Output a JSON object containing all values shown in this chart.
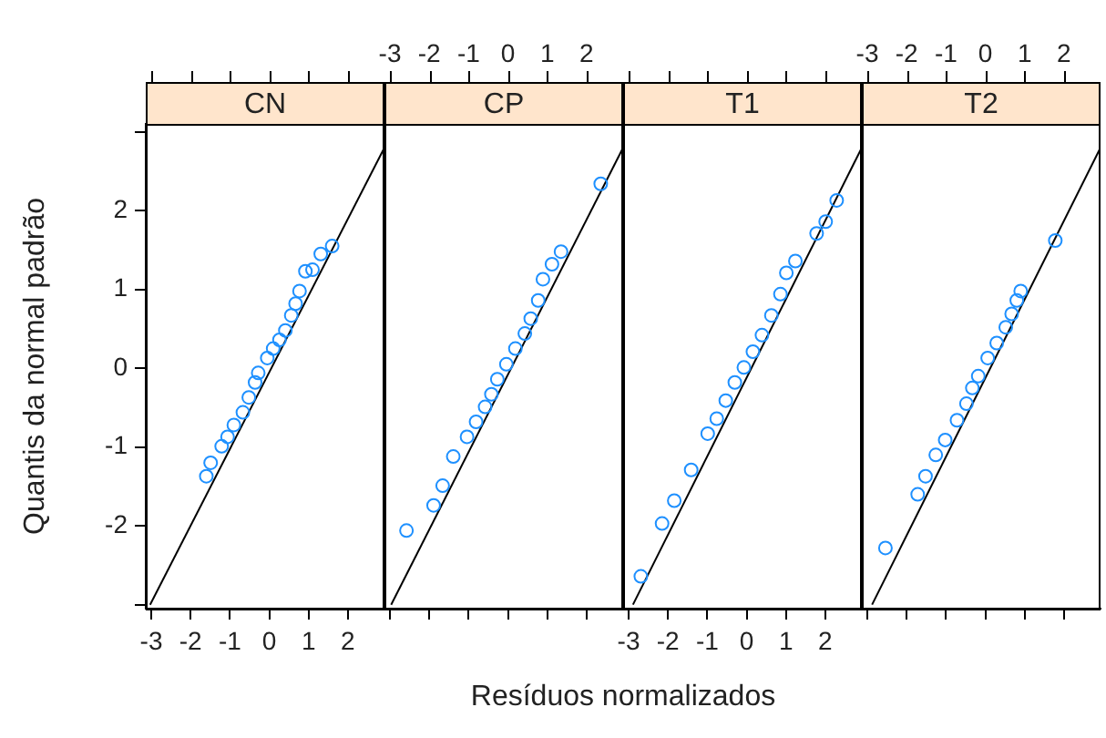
{
  "chart_data": [
    {
      "type": "scatter",
      "title": "CN",
      "xlabel": "Resíduos normalizados",
      "ylabel": "Quantis da normal padrão",
      "xlim": [
        -3.14,
        2.93
      ],
      "ylim": [
        -3.05,
        3.1
      ],
      "xticks": [
        -3,
        -2,
        -1,
        0,
        1,
        2
      ],
      "yticks": [
        {
          "value": -3,
          "label": null
        },
        -2,
        -1,
        0,
        1,
        2,
        {
          "value": 3,
          "label": null
        }
      ],
      "series": [
        {
          "marker": "circle",
          "color": "#1e90ff",
          "x": [
            -1.6,
            -1.49,
            -1.21,
            -1.06,
            -0.9,
            -0.67,
            -0.52,
            -0.36,
            -0.28,
            -0.05,
            0.1,
            0.26,
            0.41,
            0.56,
            0.67,
            0.77,
            0.92,
            1.1,
            1.31,
            1.6
          ],
          "values": [
            -1.37,
            -1.2,
            -0.99,
            -0.87,
            -0.72,
            -0.56,
            -0.37,
            -0.18,
            -0.06,
            0.13,
            0.25,
            0.36,
            0.48,
            0.67,
            0.82,
            0.98,
            1.23,
            1.25,
            1.45,
            1.55
          ]
        },
        {
          "type": "line",
          "color": "#000000",
          "x": [
            -3.03,
            2.93
          ],
          "values": [
            -3.0,
            2.8
          ]
        }
      ]
    },
    {
      "type": "scatter",
      "title": "CP",
      "xlim": [
        -3.14,
        2.93
      ],
      "ylim": [
        -3.05,
        3.1
      ],
      "xticks": [
        {
          "value": -3,
          "label": null
        },
        {
          "value": -2,
          "label": null
        },
        {
          "value": -1,
          "label": null
        },
        {
          "value": 0,
          "label": null
        },
        {
          "value": 1,
          "label": null
        },
        {
          "value": 2,
          "label": null
        }
      ],
      "x2lim": [
        -3.14,
        2.93
      ],
      "x2ticks": [
        -3,
        -2,
        -1,
        0,
        1,
        2
      ],
      "tick_labels": false,
      "series": [
        {
          "marker": "circle",
          "color": "#1e90ff",
          "x": [
            -2.58,
            -1.89,
            -1.66,
            -1.39,
            -1.04,
            -0.81,
            -0.58,
            -0.42,
            -0.27,
            -0.04,
            0.19,
            0.43,
            0.58,
            0.77,
            0.89,
            1.12,
            1.35,
            2.36
          ],
          "values": [
            -2.06,
            -1.74,
            -1.49,
            -1.12,
            -0.87,
            -0.68,
            -0.49,
            -0.33,
            -0.14,
            0.05,
            0.25,
            0.44,
            0.63,
            0.86,
            1.13,
            1.32,
            1.48,
            2.34
          ]
        },
        {
          "type": "line",
          "color": "#000000",
          "x": [
            -2.97,
            2.93
          ],
          "values": [
            -3.0,
            2.8
          ]
        }
      ]
    },
    {
      "type": "scatter",
      "title": "T1",
      "xlim": [
        -3.14,
        2.93
      ],
      "ylim": [
        -3.05,
        3.1
      ],
      "xticks": [
        -3,
        -2,
        -1,
        0,
        1,
        2
      ],
      "tick_labels": "x",
      "series": [
        {
          "marker": "circle",
          "color": "#1e90ff",
          "x": [
            -2.69,
            -2.15,
            -1.84,
            -1.41,
            -0.99,
            -0.76,
            -0.53,
            -0.3,
            -0.07,
            0.16,
            0.39,
            0.63,
            0.86,
            1.01,
            1.24,
            1.78,
            2.01,
            2.29
          ],
          "values": [
            -2.64,
            -1.97,
            -1.68,
            -1.29,
            -0.83,
            -0.64,
            -0.41,
            -0.18,
            0.01,
            0.21,
            0.42,
            0.67,
            0.94,
            1.21,
            1.36,
            1.71,
            1.86,
            2.13
          ]
        },
        {
          "type": "line",
          "color": "#000000",
          "x": [
            -2.89,
            2.93
          ],
          "values": [
            -3.0,
            2.8
          ]
        }
      ]
    },
    {
      "type": "scatter",
      "title": "T2",
      "xlim": [
        -3.14,
        2.93
      ],
      "ylim": [
        -3.05,
        3.1
      ],
      "xticks": [
        {
          "value": -3,
          "label": null
        },
        {
          "value": -2,
          "label": null
        },
        {
          "value": -1,
          "label": null
        },
        {
          "value": 0,
          "label": null
        },
        {
          "value": 1,
          "label": null
        },
        {
          "value": 2,
          "label": null
        }
      ],
      "x2lim": [
        -3.14,
        2.93
      ],
      "x2ticks": [
        -3,
        -2,
        -1,
        0,
        1,
        2
      ],
      "tick_labels": false,
      "series": [
        {
          "marker": "circle",
          "color": "#1e90ff",
          "x": [
            -2.54,
            -1.72,
            -1.52,
            -1.26,
            -1.02,
            -0.72,
            -0.48,
            -0.33,
            -0.18,
            0.06,
            0.29,
            0.52,
            0.67,
            0.8,
            0.9,
            1.78
          ],
          "values": [
            -2.28,
            -1.6,
            -1.37,
            -1.1,
            -0.91,
            -0.66,
            -0.45,
            -0.25,
            -0.1,
            0.13,
            0.32,
            0.52,
            0.69,
            0.86,
            0.98,
            1.62
          ]
        },
        {
          "type": "line",
          "color": "#000000",
          "x": [
            -2.88,
            2.93
          ],
          "values": [
            -3.0,
            2.8
          ]
        }
      ]
    }
  ]
}
